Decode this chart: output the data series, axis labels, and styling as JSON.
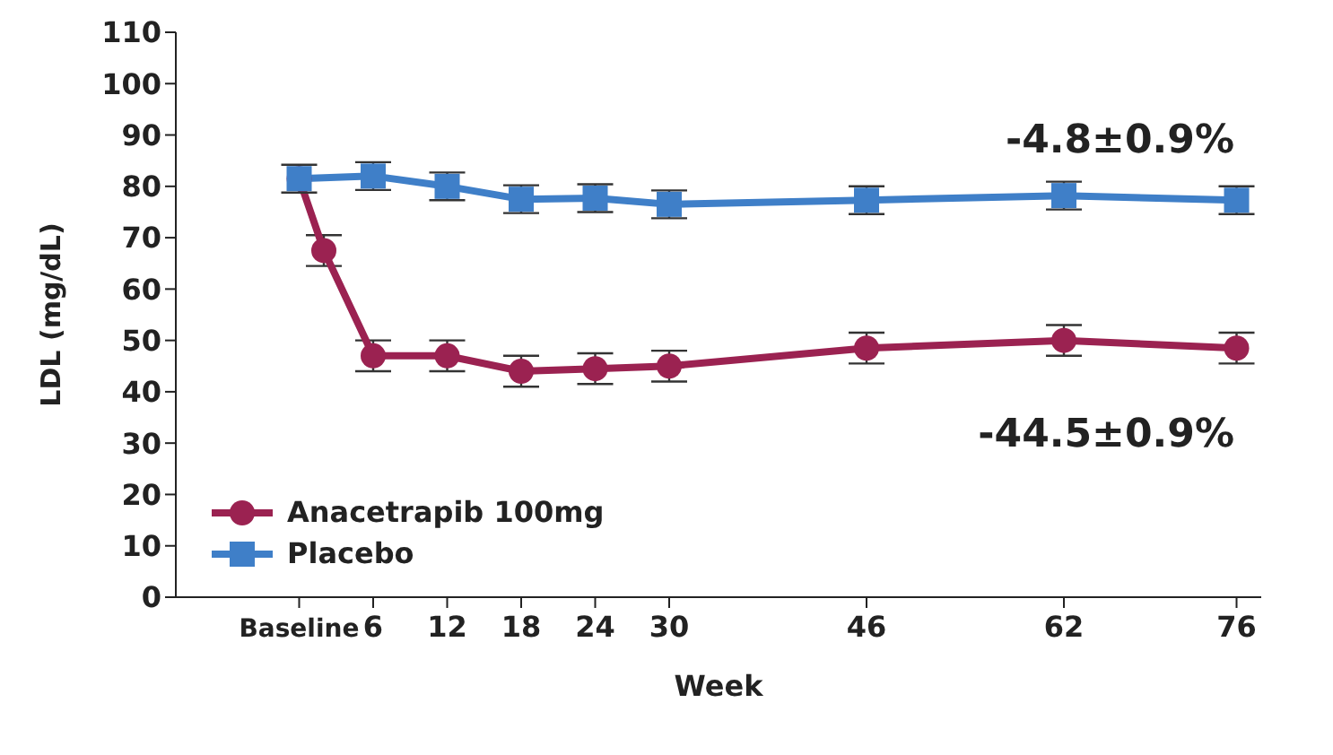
{
  "chart_data": {
    "type": "line",
    "xlabel": "Week",
    "ylabel": "LDL (mg/dL)",
    "xlim": [
      -10,
      78
    ],
    "xticks": [
      {
        "value": 0,
        "label": "Baseline"
      },
      6,
      12,
      18,
      24,
      30,
      46,
      62,
      76
    ],
    "ylim": [
      0,
      110
    ],
    "yticks": [
      0,
      10,
      20,
      30,
      40,
      50,
      60,
      70,
      80,
      90,
      100,
      110
    ],
    "grid": false,
    "legend": "bottom left",
    "annotations": [
      "-4.8±0.9%",
      "-44.5±0.9%"
    ],
    "series": [
      {
        "name": "Anacetrapib 100mg",
        "color": "#9b2251",
        "marker": "circle",
        "x": [
          0,
          2,
          6,
          12,
          18,
          24,
          30,
          46,
          62,
          76
        ],
        "values": [
          81.5,
          67.5,
          47,
          47,
          44,
          44.5,
          45,
          48.5,
          50,
          48.5
        ],
        "errors": [
          null,
          3,
          3,
          3,
          3,
          3,
          3,
          3,
          3,
          3
        ]
      },
      {
        "name": "Placebo",
        "color": "#3f7fc8",
        "marker": "square",
        "x": [
          0,
          6,
          12,
          18,
          24,
          30,
          46,
          62,
          76
        ],
        "values": [
          81.5,
          82,
          80,
          77.5,
          77.7,
          76.5,
          77.3,
          78.2,
          77.3
        ],
        "errors": [
          2.7,
          2.7,
          2.7,
          2.7,
          2.7,
          2.7,
          2.7,
          2.7,
          2.7
        ]
      }
    ]
  }
}
